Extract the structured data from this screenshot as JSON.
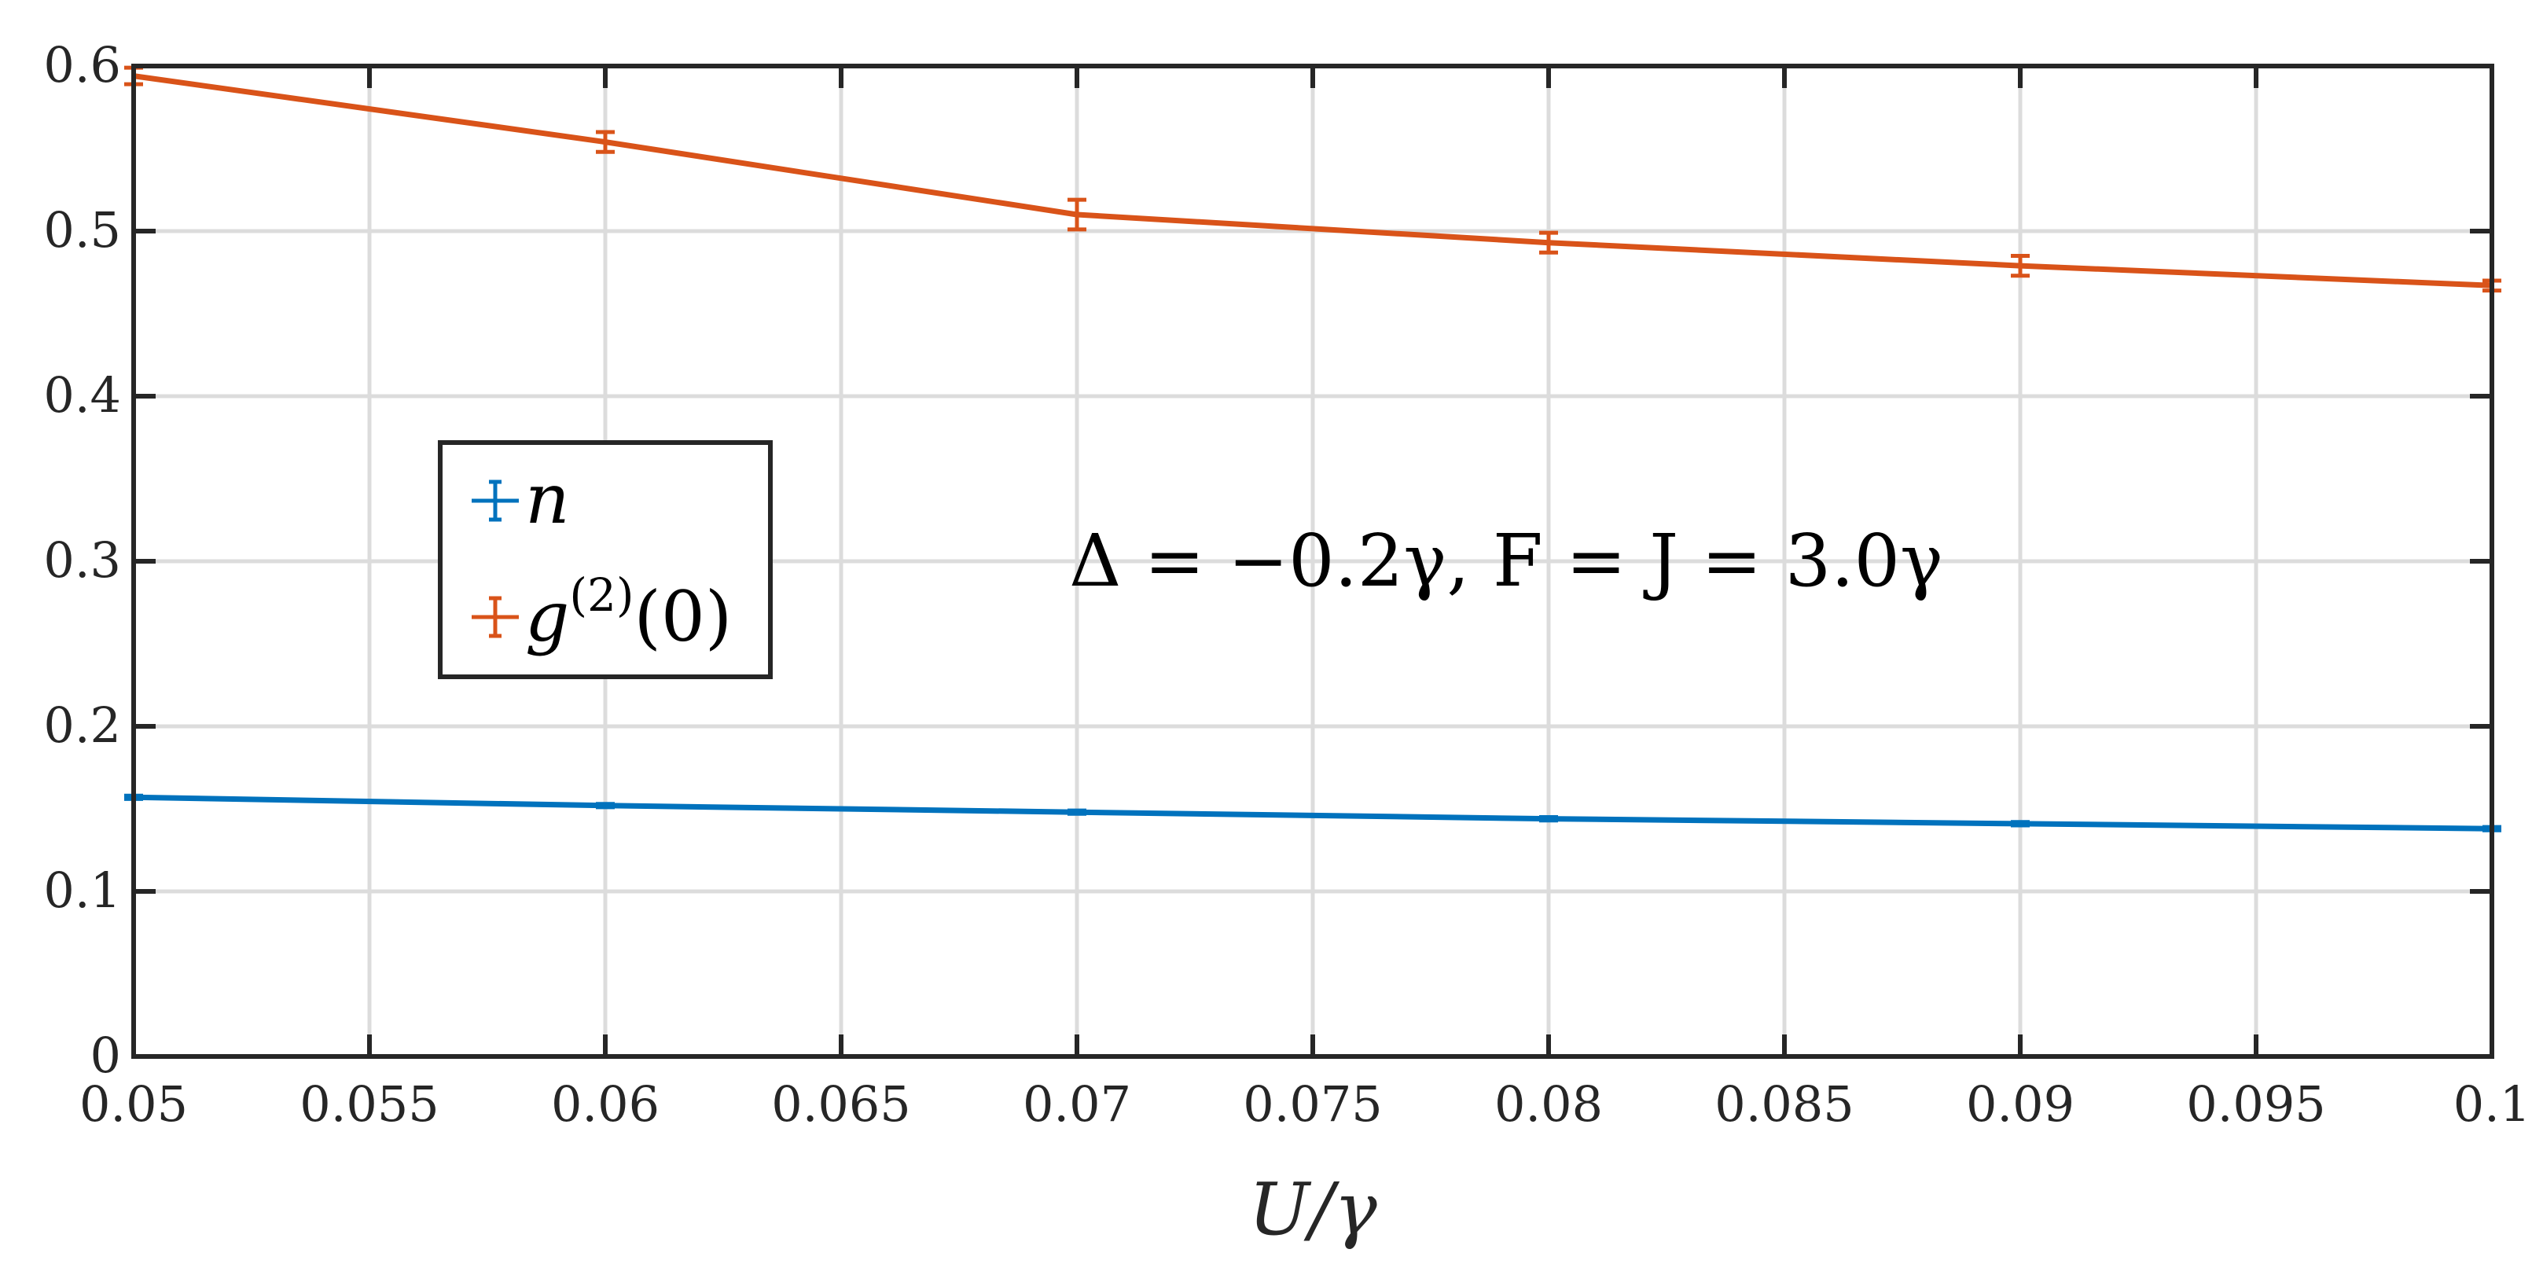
{
  "chart_data": {
    "type": "line",
    "title": "",
    "xlabel": "U/γ",
    "ylabel": "",
    "xlim": [
      0.05,
      0.1
    ],
    "ylim": [
      0,
      0.6
    ],
    "grid": true,
    "legend_position": "center-left",
    "x_ticks": [
      "0.05",
      "0.055",
      "0.06",
      "0.065",
      "0.07",
      "0.075",
      "0.08",
      "0.085",
      "0.09",
      "0.095",
      "0.1"
    ],
    "y_ticks": [
      "0",
      "0.1",
      "0.2",
      "0.3",
      "0.4",
      "0.5",
      "0.6"
    ],
    "x": [
      0.05,
      0.06,
      0.07,
      0.08,
      0.09,
      0.1
    ],
    "series": [
      {
        "name": "n",
        "color": "#0072BD",
        "values": [
          0.157,
          0.152,
          0.148,
          0.144,
          0.141,
          0.138
        ],
        "errors": [
          0.001,
          0.001,
          0.001,
          0.001,
          0.001,
          0.001
        ]
      },
      {
        "name": "g(2)(0)",
        "color": "#D95319",
        "values": [
          0.594,
          0.554,
          0.51,
          0.493,
          0.479,
          0.467
        ],
        "errors": [
          0.005,
          0.006,
          0.009,
          0.006,
          0.006,
          0.003
        ]
      }
    ],
    "annotations": [
      "Δ = −0.2γ, F = J = 3.0γ"
    ]
  }
}
